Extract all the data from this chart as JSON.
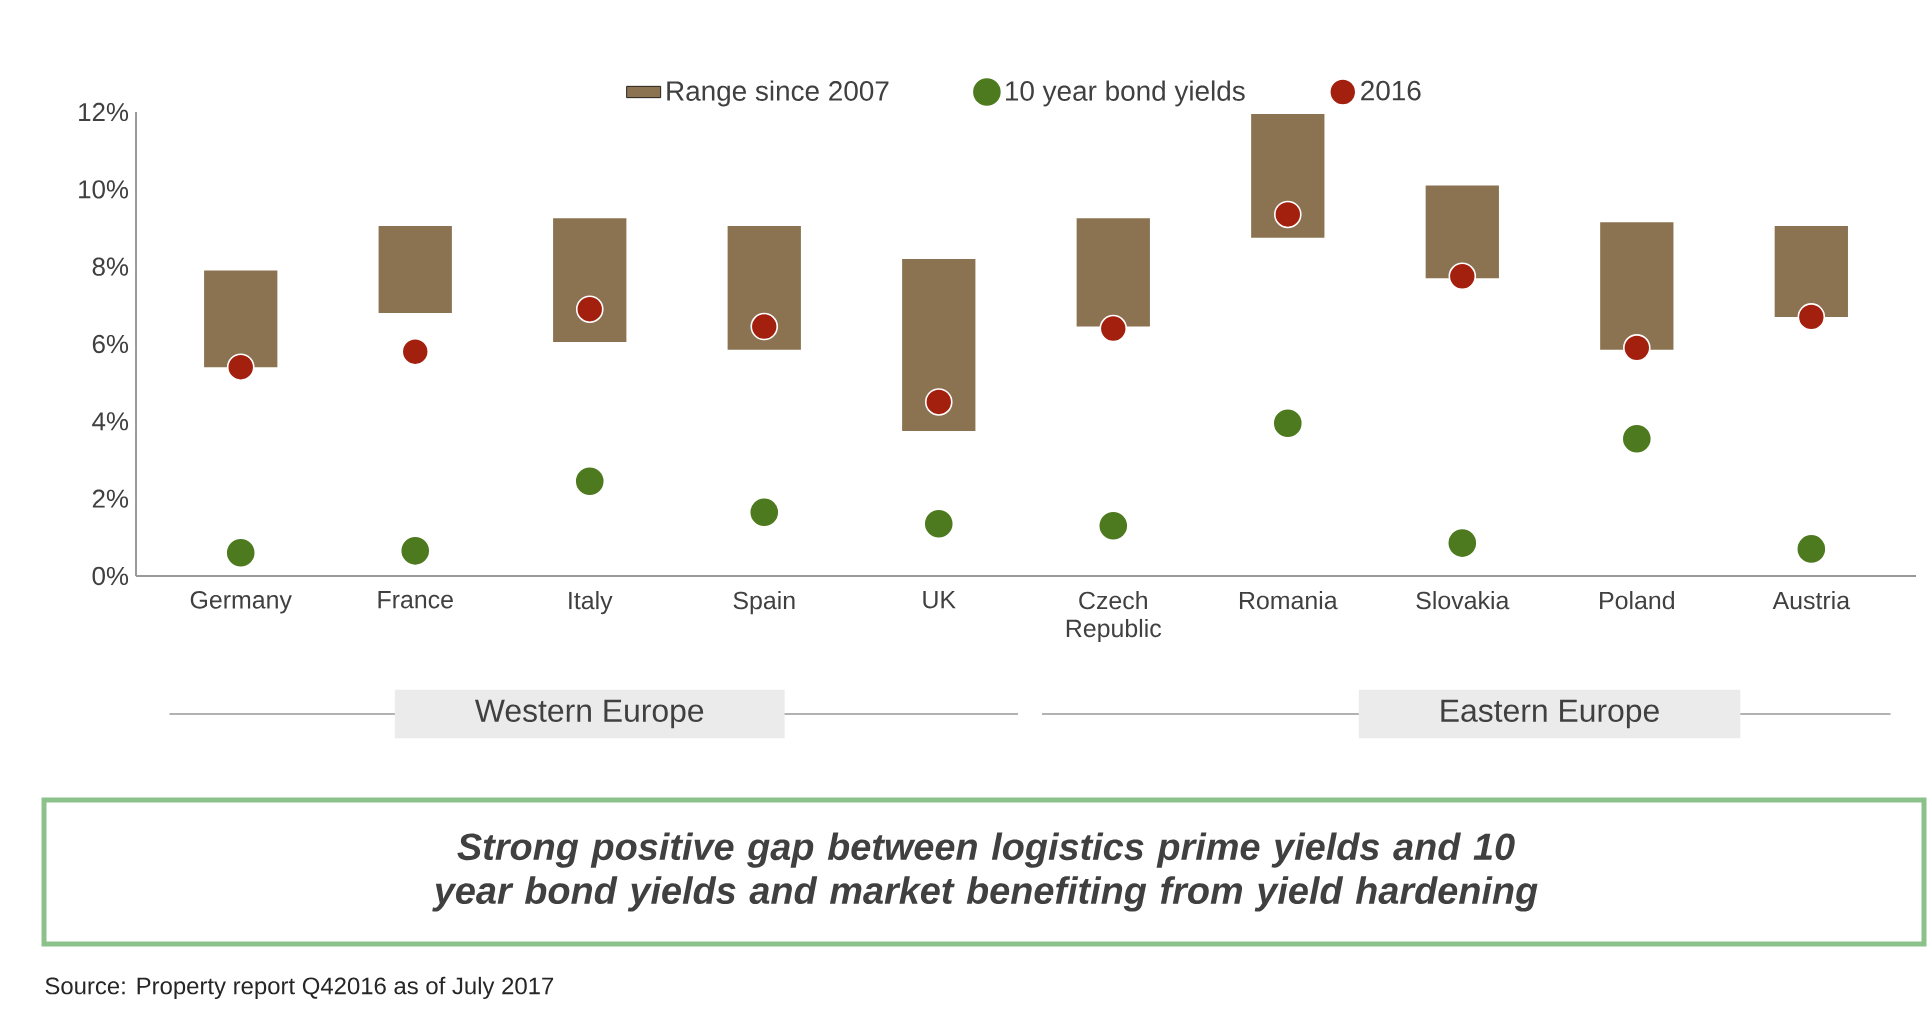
{
  "chart_data": {
    "type": "bar",
    "categories": [
      "Germany",
      "France",
      "Italy",
      "Spain",
      "UK",
      "Czech Republic",
      "Romania",
      "Slovakia",
      "Poland",
      "Austria"
    ],
    "series": [
      {
        "name": "Range since 2007",
        "color": "#8b7352",
        "base": [
          5.4,
          6.8,
          6.05,
          5.85,
          3.75,
          6.45,
          8.75,
          7.7,
          5.85,
          6.7
        ],
        "values": [
          2.5,
          2.25,
          3.2,
          3.2,
          4.45,
          2.8,
          3.2,
          2.4,
          3.3,
          2.35
        ]
      },
      {
        "name": "10 year bond yields",
        "type": "scatter",
        "color": "#4e7a1f",
        "values": [
          0.6,
          0.65,
          2.45,
          1.65,
          1.35,
          1.3,
          3.95,
          0.85,
          3.55,
          0.7
        ]
      },
      {
        "name": "2016",
        "type": "scatter",
        "color": "#a3200f",
        "values": [
          5.4,
          5.8,
          6.9,
          6.45,
          4.5,
          6.4,
          9.35,
          7.75,
          5.9,
          6.7
        ]
      }
    ],
    "ylim": [
      0,
      12
    ],
    "yticks": [
      {
        "value": 0,
        "label": "0%"
      },
      {
        "value": 2,
        "label": "2%"
      },
      {
        "value": 4,
        "label": "4%"
      },
      {
        "value": 6,
        "label": "6%"
      },
      {
        "value": 8,
        "label": "8%"
      },
      {
        "value": 10,
        "label": "10%"
      },
      {
        "value": 12,
        "label": "12%"
      }
    ],
    "legend": "top",
    "annotations": [
      "Western Europe",
      "Eastern Europe",
      "Strong positive gap between logistics prime yields and 10 year bond yields and market benefiting from yield hardening",
      "Source: Property report Q42016 as of July 2017"
    ]
  }
}
